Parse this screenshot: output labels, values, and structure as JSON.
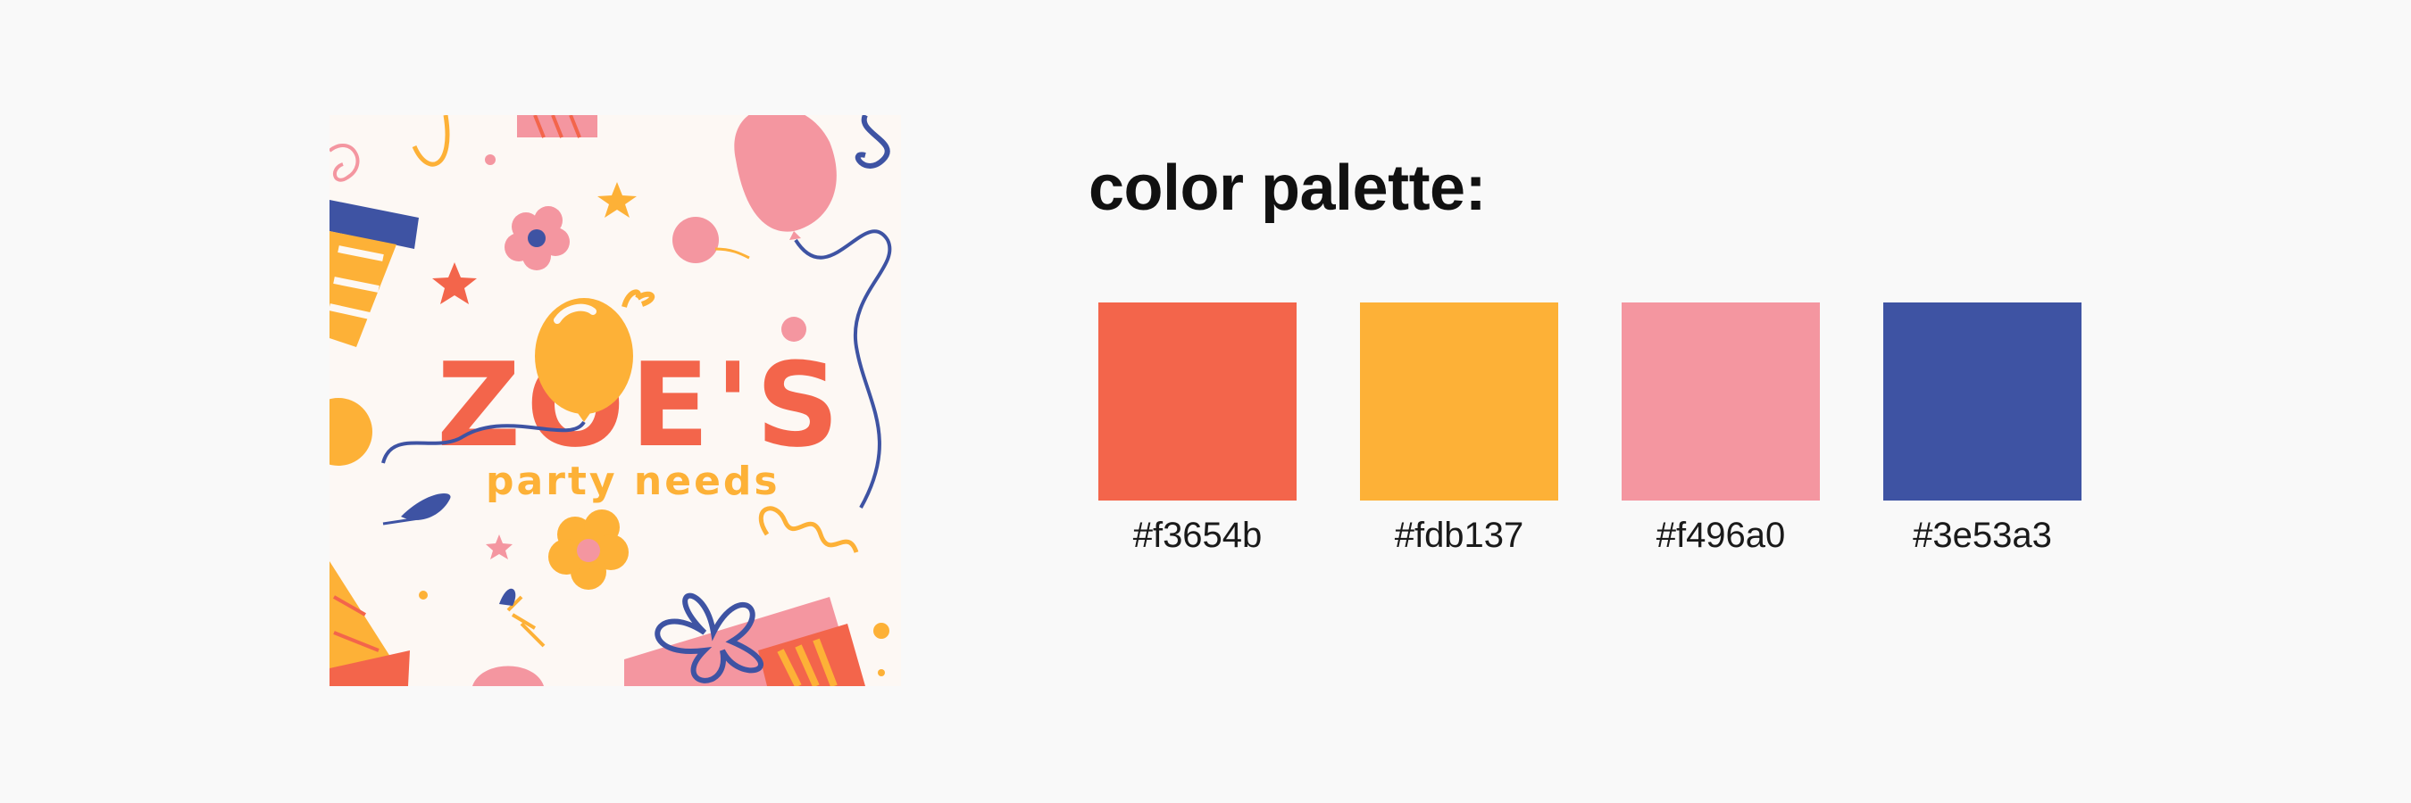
{
  "logo": {
    "name": "ZOE'S",
    "tagline": "party needs"
  },
  "palette": {
    "title": "color palette:",
    "colors": [
      {
        "hex": "#f3654b",
        "label": "#f3654b"
      },
      {
        "hex": "#fdb137",
        "label": "#fdb137"
      },
      {
        "hex": "#f496a0",
        "label": "#f496a0"
      },
      {
        "hex": "#3e53a3",
        "label": "#3e53a3"
      }
    ]
  }
}
